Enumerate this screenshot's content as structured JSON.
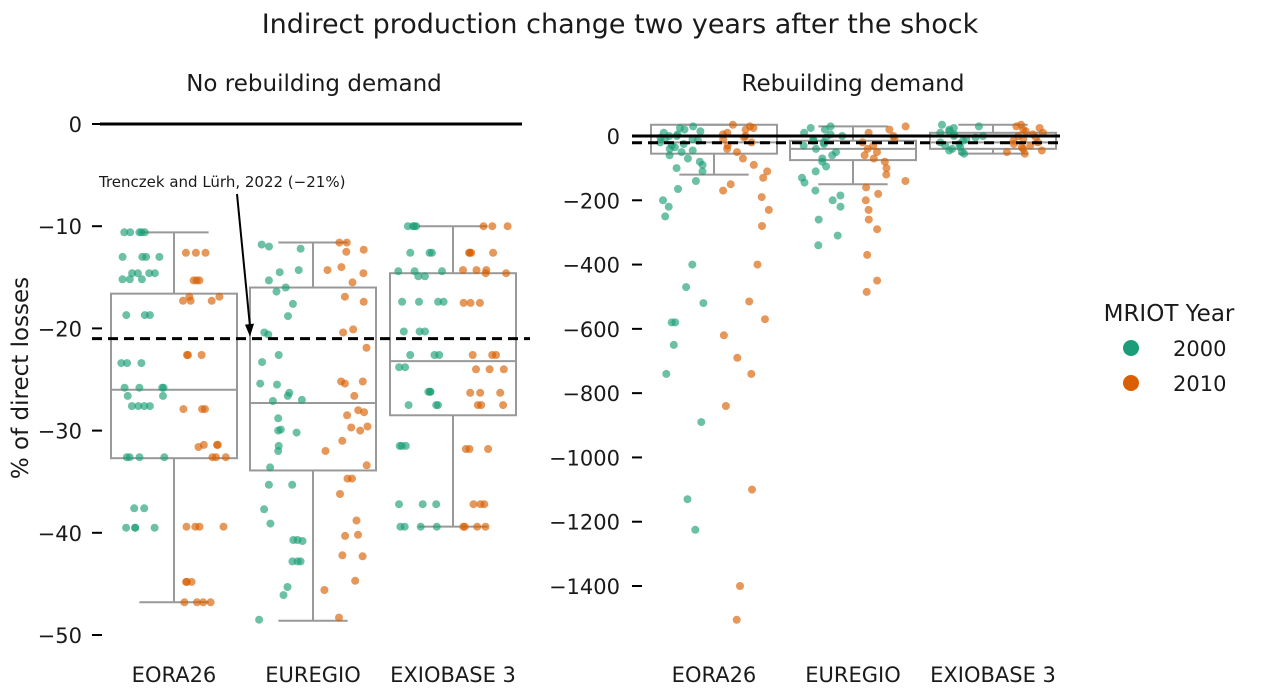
{
  "figure_title": "Indirect production change two years after the shock",
  "legend": {
    "title": "MRIOT Year",
    "items": [
      {
        "label": "2000",
        "color": "#1b9e77"
      },
      {
        "label": "2010",
        "color": "#d95f02"
      }
    ]
  },
  "colors": {
    "box_stroke": "#999999",
    "axis": "#000000"
  },
  "chart_data": [
    {
      "type": "box+strip",
      "title": "No rebuilding demand",
      "xlabel": "",
      "ylabel": "% of direct losses",
      "categories": [
        "EORA26",
        "EUREGIO",
        "EXIOBASE 3"
      ],
      "ylim": [
        -51,
        0
      ],
      "yticks": [
        0,
        -10,
        -20,
        -30,
        -40,
        -50
      ],
      "ytick_labels": [
        "0",
        "−10",
        "−20",
        "−30",
        "−40",
        "−50"
      ],
      "reference_line": 0,
      "annotation": {
        "text": "Trenczek and Lürh, 2022 (−21%)",
        "value": -21,
        "category": "EUREGIO"
      },
      "boxes": [
        {
          "category": "EORA26",
          "q1": -32.7,
          "median": -26.0,
          "q3": -16.6,
          "whisker_low": -46.8,
          "whisker_high": -10.6
        },
        {
          "category": "EUREGIO",
          "q1": -33.9,
          "median": -27.3,
          "q3": -16.0,
          "whisker_low": -48.6,
          "whisker_high": -11.6
        },
        {
          "category": "EXIOBASE 3",
          "q1": -28.5,
          "median": -23.2,
          "q3": -14.6,
          "whisker_low": -39.4,
          "whisker_high": -10.0
        }
      ],
      "series": [
        {
          "name": "2000",
          "values_by_category": [
            [
              -10.6,
              -10.6,
              -10.6,
              -10.6,
              -10.6,
              -13.0,
              -13.0,
              -13.0,
              -13.0,
              -14.6,
              -14.6,
              -14.6,
              -14.6,
              -15.2,
              -15.2,
              -15.2,
              -18.7,
              -18.7,
              -18.7,
              -23.4,
              -23.4,
              -23.4,
              -25.8,
              -25.8,
              -25.8,
              -25.8,
              -26.6,
              -26.6,
              -27.6,
              -27.6,
              -27.6,
              -27.6,
              -32.6,
              -32.6,
              -32.6,
              -32.6,
              -37.6,
              -37.6,
              -39.5,
              -39.5,
              -39.5,
              -39.5
            ],
            [
              -11.8,
              -12.2,
              -12.0,
              -14.3,
              -14.5,
              -15.3,
              -16.0,
              -16.4,
              -17.6,
              -18.8,
              -20.4,
              -20.6,
              -22.6,
              -23.3,
              -25.4,
              -25.5,
              -26.3,
              -26.6,
              -27.0,
              -27.1,
              -28.8,
              -29.9,
              -30.0,
              -30.2,
              -31.5,
              -32.0,
              -33.6,
              -35.3,
              -35.3,
              -37.7,
              -39.1,
              -40.7,
              -40.7,
              -40.8,
              -42.8,
              -42.8,
              -42.8,
              -45.3,
              -46.1,
              -48.5
            ],
            [
              -10.0,
              -10.0,
              -10.0,
              -10.0,
              -12.6,
              -12.6,
              -12.6,
              -14.4,
              -14.4,
              -14.4,
              -14.9,
              -14.9,
              -17.4,
              -17.4,
              -17.4,
              -17.4,
              -20.3,
              -20.3,
              -20.3,
              -22.6,
              -22.6,
              -22.6,
              -23.8,
              -23.8,
              -26.2,
              -26.2,
              -26.2,
              -27.5,
              -27.5,
              -27.5,
              -31.5,
              -31.5,
              -31.5,
              -37.2,
              -37.2,
              -37.2,
              -39.4,
              -39.4,
              -39.4,
              -39.4
            ]
          ]
        },
        {
          "name": "2010",
          "values_by_category": [
            [
              -12.6,
              -12.6,
              -12.6,
              -15.3,
              -15.3,
              -15.3,
              -16.9,
              -16.9,
              -17.3,
              -17.3,
              -17.3,
              -22.6,
              -22.6,
              -22.6,
              -27.9,
              -27.9,
              -27.9,
              -31.4,
              -31.4,
              -31.4,
              -31.6,
              -32.6,
              -32.6,
              -32.6,
              -39.4,
              -39.4,
              -39.4,
              -39.4,
              -44.8,
              -44.8,
              -44.8,
              -46.8,
              -46.8,
              -46.8,
              -46.8
            ],
            [
              -11.6,
              -11.6,
              -12.3,
              -12.5,
              -14.0,
              -14.3,
              -14.6,
              -15.5,
              -16.9,
              -17.4,
              -20.1,
              -20.4,
              -21.9,
              -25.2,
              -25.2,
              -25.4,
              -26.6,
              -28.0,
              -28.2,
              -28.5,
              -29.6,
              -29.7,
              -30.0,
              -31.0,
              -32.0,
              -33.4,
              -34.7,
              -34.7,
              -36.2,
              -38.8,
              -40.2,
              -40.3,
              -42.2,
              -42.3,
              -44.7,
              -45.6,
              -48.3
            ],
            [
              -10.0,
              -10.0,
              -10.0,
              -12.6,
              -12.6,
              -12.6,
              -12.6,
              -14.3,
              -14.3,
              -14.3,
              -14.6,
              -14.6,
              -17.5,
              -17.5,
              -17.5,
              -22.6,
              -22.6,
              -22.6,
              -24.0,
              -24.0,
              -24.0,
              -26.3,
              -26.3,
              -26.3,
              -27.5,
              -27.5,
              -27.5,
              -31.8,
              -31.8,
              -31.8,
              -37.2,
              -37.2,
              -37.2,
              -39.4,
              -39.4,
              -39.4,
              -39.4
            ]
          ]
        }
      ]
    },
    {
      "type": "box+strip",
      "title": "Rebuilding demand",
      "xlabel": "",
      "ylabel": "",
      "categories": [
        "EORA26",
        "EUREGIO",
        "EXIOBASE 3"
      ],
      "ylim": [
        -1520,
        60
      ],
      "yticks": [
        0,
        -200,
        -400,
        -600,
        -800,
        -1000,
        -1200,
        -1400
      ],
      "ytick_labels": [
        "0",
        "−200",
        "−400",
        "−600",
        "−800",
        "−1000",
        "−1200",
        "−1400"
      ],
      "reference_line": 0,
      "dashed_line": -21,
      "boxes": [
        {
          "category": "EORA26",
          "q1": -55,
          "median": -20,
          "q3": 35,
          "whisker_low": -120,
          "whisker_high": 35
        },
        {
          "category": "EUREGIO",
          "q1": -75,
          "median": -40,
          "q3": -15,
          "whisker_low": -150,
          "whisker_high": 30
        },
        {
          "category": "EXIOBASE 3",
          "q1": -40,
          "median": -20,
          "q3": 10,
          "whisker_low": -55,
          "whisker_high": 35
        }
      ],
      "series": [
        {
          "name": "2000",
          "values_by_category": [
            [
              30,
              25,
              20,
              15,
              10,
              5,
              0,
              0,
              -5,
              -10,
              -10,
              -15,
              -20,
              -25,
              -30,
              -35,
              -40,
              -45,
              -50,
              -60,
              -70,
              -80,
              -90,
              -100,
              -110,
              -140,
              -165,
              -200,
              -220,
              -250,
              -400,
              -470,
              -520,
              -580,
              -580,
              -650,
              -740,
              -890,
              -1130,
              -1225
            ],
            [
              30,
              25,
              20,
              10,
              5,
              0,
              -5,
              -10,
              -15,
              -20,
              -25,
              -30,
              -40,
              -50,
              -60,
              -70,
              -80,
              -95,
              -110,
              -130,
              -145,
              -170,
              -185,
              -200,
              -220,
              -260,
              -310,
              -340
            ],
            [
              35,
              30,
              25,
              20,
              15,
              10,
              5,
              0,
              0,
              -5,
              -10,
              -15,
              -20,
              -25,
              -30,
              -35,
              -40,
              -45,
              -50,
              -55
            ]
          ]
        },
        {
          "name": "2010",
          "values_by_category": [
            [
              35,
              30,
              25,
              20,
              10,
              5,
              0,
              -5,
              -10,
              -20,
              -30,
              -40,
              -50,
              -70,
              -90,
              -110,
              -130,
              -150,
              -170,
              -190,
              -230,
              -280,
              -400,
              -515,
              -570,
              -620,
              -690,
              -740,
              -840,
              -1100,
              -1400,
              -1505
            ],
            [
              30,
              20,
              10,
              0,
              -10,
              -20,
              -30,
              -40,
              -50,
              -60,
              -70,
              -80,
              -100,
              -120,
              -140,
              -160,
              -180,
              -200,
              -230,
              -260,
              -290,
              -370,
              -450,
              -485
            ],
            [
              35,
              30,
              25,
              20,
              15,
              10,
              5,
              0,
              -5,
              -10,
              -15,
              -20,
              -25,
              -30,
              -35,
              -40,
              -45,
              -50,
              -55
            ]
          ]
        }
      ]
    }
  ]
}
